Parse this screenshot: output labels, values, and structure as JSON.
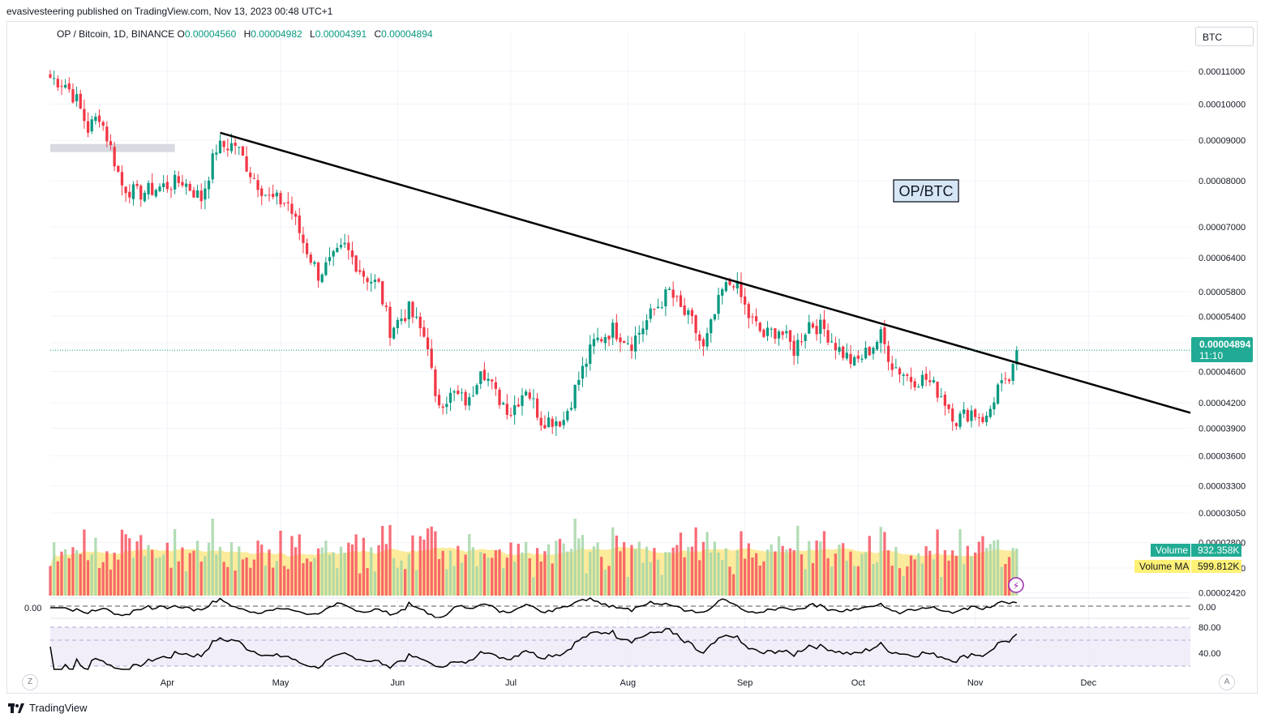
{
  "publish_line": "evasivesteering published on TradingView.com, Nov 13, 2023 00:48 UTC+1",
  "legend": {
    "symbol": "OP / Bitcoin, 1D, BINANCE",
    "o_label": "O",
    "o_value": "0.00004560",
    "h_label": "H",
    "h_value": "0.00004982",
    "l_label": "L",
    "l_value": "0.00004391",
    "c_label": "C",
    "c_value": "0.00004894"
  },
  "currency_button": "BTC",
  "annotation_text": "OP/BTC",
  "last_price": {
    "price": "0.00004894",
    "countdown": "11:10"
  },
  "volume_tags": {
    "volume_label": "Volume",
    "volume_value": "932.358K",
    "ma_label": "Volume MA",
    "ma_value": "599.812K"
  },
  "oscillator1_left_label": "0.00",
  "footer": {
    "brand": "TradingView",
    "z_button": "Z",
    "a_button": "A"
  },
  "colors": {
    "up": "#089981",
    "down": "#f23645",
    "vol_up": "#a5d6a7",
    "vol_down": "#f7525f",
    "vol_ma": "#fbe88a",
    "rsi_band": "#7e57c2",
    "price_tag": "#22ab94",
    "ma_tag": "#fff176"
  },
  "chart_data": {
    "type": "candlestick",
    "title": "OP/BTC",
    "y_scale": "log",
    "ylim": [
      2.4e-05,
      0.000118
    ],
    "y_ticks": [
      "0.00011000",
      "0.00010000",
      "0.00009000",
      "0.00008000",
      "0.00007000",
      "0.00006400",
      "0.00005800",
      "0.00005400",
      "0.00005000",
      "0.00004600",
      "0.00004200",
      "0.00003900",
      "0.00003600",
      "0.00003300",
      "0.00003050",
      "0.00002800",
      "0.00002600",
      "0.00002420"
    ],
    "x_ticks": [
      "Apr",
      "May",
      "Jun",
      "Jul",
      "Aug",
      "Sep",
      "Oct",
      "Nov",
      "Dec"
    ],
    "x_tick_dates": [
      "2023-04-01",
      "2023-05-01",
      "2023-06-01",
      "2023-07-01",
      "2023-08-01",
      "2023-09-01",
      "2023-10-01",
      "2023-11-01",
      "2023-12-01"
    ],
    "x_range": [
      "2023-03-01",
      "2023-12-28"
    ],
    "anchors": [
      [
        "2023-03-01",
        0.000108
      ],
      [
        "2023-03-05",
        0.000106
      ],
      [
        "2023-03-08",
        0.000101
      ],
      [
        "2023-03-11",
        9.3e-05
      ],
      [
        "2023-03-14",
        9.7e-05
      ],
      [
        "2023-03-17",
        8.8e-05
      ],
      [
        "2023-03-20",
        7.9e-05
      ],
      [
        "2023-03-24",
        7.7e-05
      ],
      [
        "2023-03-28",
        7.8e-05
      ],
      [
        "2023-04-05",
        8e-05
      ],
      [
        "2023-04-10",
        7.6e-05
      ],
      [
        "2023-04-14",
        8.8e-05
      ],
      [
        "2023-04-19",
        8.9e-05
      ],
      [
        "2023-04-23",
        8.2e-05
      ],
      [
        "2023-04-28",
        7.6e-05
      ],
      [
        "2023-05-03",
        7.5e-05
      ],
      [
        "2023-05-07",
        6.7e-05
      ],
      [
        "2023-05-11",
        6.1e-05
      ],
      [
        "2023-05-14",
        6.3e-05
      ],
      [
        "2023-05-18",
        6.6e-05
      ],
      [
        "2023-05-23",
        6.1e-05
      ],
      [
        "2023-05-27",
        5.9e-05
      ],
      [
        "2023-05-30",
        5.2e-05
      ],
      [
        "2023-06-04",
        5.5e-05
      ],
      [
        "2023-06-09",
        5e-05
      ],
      [
        "2023-06-11",
        4.2e-05
      ],
      [
        "2023-06-16",
        4.3e-05
      ],
      [
        "2023-06-20",
        4.2e-05
      ],
      [
        "2023-06-23",
        4.7e-05
      ],
      [
        "2023-06-27",
        4.3e-05
      ],
      [
        "2023-07-01",
        4.1e-05
      ],
      [
        "2023-07-05",
        4.4e-05
      ],
      [
        "2023-07-09",
        4e-05
      ],
      [
        "2023-07-15",
        4e-05
      ],
      [
        "2023-07-19",
        4.5e-05
      ],
      [
        "2023-07-23",
        5e-05
      ],
      [
        "2023-07-28",
        5.2e-05
      ],
      [
        "2023-08-02",
        5e-05
      ],
      [
        "2023-08-08",
        5.5e-05
      ],
      [
        "2023-08-12",
        5.8e-05
      ],
      [
        "2023-08-15",
        5.5e-05
      ],
      [
        "2023-08-18",
        5.3e-05
      ],
      [
        "2023-08-21",
        4.9e-05
      ],
      [
        "2023-08-26",
        5.8e-05
      ],
      [
        "2023-08-29",
        6e-05
      ],
      [
        "2023-09-02",
        5.4e-05
      ],
      [
        "2023-09-06",
        5.1e-05
      ],
      [
        "2023-09-10",
        5.2e-05
      ],
      [
        "2023-09-14",
        4.9e-05
      ],
      [
        "2023-09-18",
        5.3e-05
      ],
      [
        "2023-09-22",
        5.2e-05
      ],
      [
        "2023-09-26",
        4.9e-05
      ],
      [
        "2023-09-30",
        4.7e-05
      ],
      [
        "2023-10-04",
        4.9e-05
      ],
      [
        "2023-10-07",
        5.1e-05
      ],
      [
        "2023-10-10",
        4.7e-05
      ],
      [
        "2023-10-15",
        4.5e-05
      ],
      [
        "2023-10-19",
        4.5e-05
      ],
      [
        "2023-10-23",
        4.3e-05
      ],
      [
        "2023-10-27",
        4e-05
      ],
      [
        "2023-10-31",
        4.1e-05
      ],
      [
        "2023-11-04",
        4e-05
      ],
      [
        "2023-11-07",
        4.4e-05
      ],
      [
        "2023-11-09",
        4.4e-05
      ],
      [
        "2023-11-11",
        4.6e-05
      ],
      [
        "2023-11-12",
        4.894e-05
      ]
    ],
    "trendline": {
      "from": [
        "2023-04-15",
        9.2e-05
      ],
      "to": [
        "2023-12-28",
        4.08e-05
      ]
    },
    "support_zone": {
      "from": "2023-03-01",
      "to": "2023-04-03",
      "price": 8.8e-05
    },
    "rsi_levels": [
      80,
      40
    ],
    "osc_zero": 0.0
  }
}
